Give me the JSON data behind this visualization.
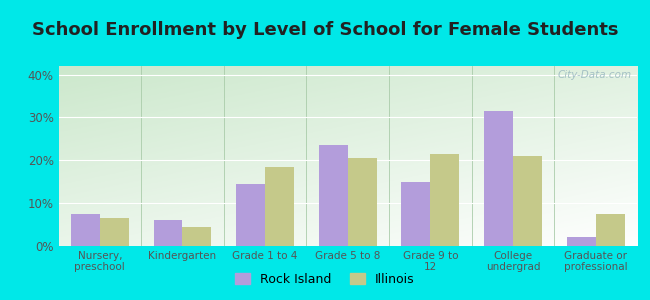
{
  "title": "School Enrollment by Level of School for Female Students",
  "categories": [
    "Nursery,\npreschool",
    "Kindergarten",
    "Grade 1 to 4",
    "Grade 5 to 8",
    "Grade 9 to\n12",
    "College\nundergrad",
    "Graduate or\nprofessional"
  ],
  "rock_island": [
    7.5,
    6.0,
    14.5,
    23.5,
    15.0,
    31.5,
    2.0
  ],
  "illinois": [
    6.5,
    4.5,
    18.5,
    20.5,
    21.5,
    21.0,
    7.5
  ],
  "rock_island_color": "#b39ddb",
  "illinois_color": "#c5c98a",
  "background_color": "#00e8e8",
  "ylim": [
    0,
    42
  ],
  "yticks": [
    0,
    10,
    20,
    30,
    40
  ],
  "ytick_labels": [
    "0%",
    "10%",
    "20%",
    "30%",
    "40%"
  ],
  "title_fontsize": 13,
  "legend_labels": [
    "Rock Island",
    "Illinois"
  ],
  "bar_width": 0.35,
  "watermark": "City-Data.com",
  "grad_top_left": "#cce8cc",
  "grad_bottom_right": "#f0faf5"
}
